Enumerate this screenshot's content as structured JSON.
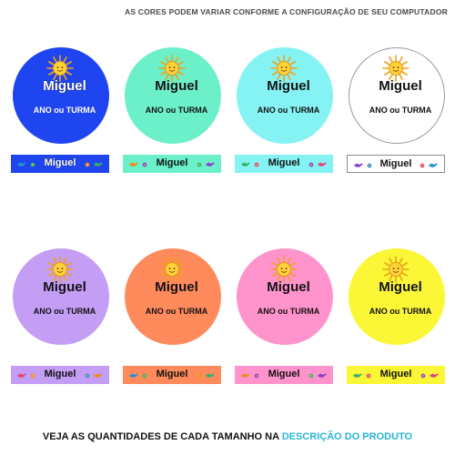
{
  "top_note": "AS CORES PODEM VARIAR CONFORME A CONFIGURAÇÃO DE SEU COMPUTADOR",
  "bottom_note": {
    "prefix": "VEJA AS QUANTIDADES DE CADA TAMANHO NA ",
    "link": "DESCRIÇÃO DO PRODUTO"
  },
  "labels": [
    {
      "name": "Miguel",
      "class": "ANO ou TURMA",
      "strip": "Miguel",
      "color": "#1f45f0",
      "light_text": true
    },
    {
      "name": "Miguel",
      "class": "ANO ou TURMA",
      "strip": "Miguel",
      "color": "#6cf0c9",
      "light_text": false
    },
    {
      "name": "Miguel",
      "class": "ANO ou TURMA",
      "strip": "Miguel",
      "color": "#85f3f3",
      "light_text": false
    },
    {
      "name": "Miguel",
      "class": "ANO ou TURMA",
      "strip": "Miguel",
      "color": "#ffffff",
      "light_text": false,
      "outlined": true
    },
    {
      "name": "Miguel",
      "class": "ANO ou TURMA",
      "strip": "Miguel",
      "color": "#c49df5",
      "light_text": false
    },
    {
      "name": "Miguel",
      "class": "ANO ou TURMA",
      "strip": "Miguel",
      "color": "#ff8a5c",
      "light_text": false
    },
    {
      "name": "Miguel",
      "class": "ANO ou TURMA",
      "strip": "Miguel",
      "color": "#ff93cc",
      "light_text": false
    },
    {
      "name": "Miguel",
      "class": "ANO ou TURMA",
      "strip": "Miguel",
      "color": "#fbf736",
      "light_text": false
    }
  ],
  "icons": {
    "sun": "sun-icon",
    "doodles": [
      "bird-doodle-icon",
      "flower-doodle-icon"
    ]
  }
}
